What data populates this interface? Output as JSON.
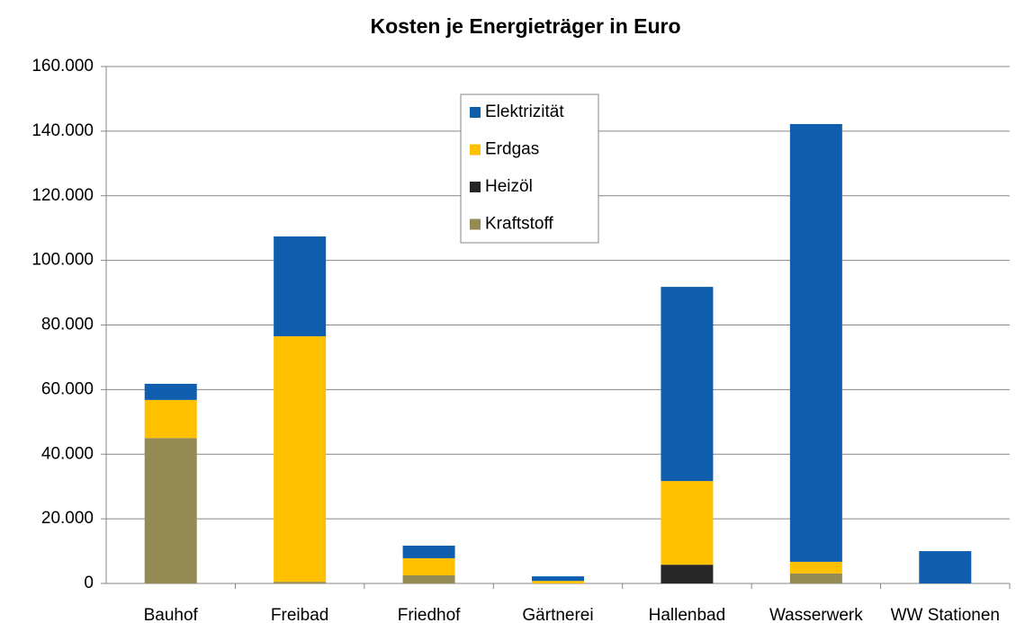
{
  "chart_data": {
    "type": "bar",
    "stacked": true,
    "title": "Kosten je Energieträger in Euro",
    "categories": [
      "Bauhof",
      "Freibad",
      "Friedhof",
      "Gärtnerei",
      "Hallenbad",
      "Wasserwerk",
      "WW Stationen"
    ],
    "series": [
      {
        "name": "Elektrizität",
        "color": "#0f5fae",
        "values": [
          5000,
          30900,
          3900,
          1400,
          60100,
          135500,
          10000
        ]
      },
      {
        "name": "Erdgas",
        "color": "#ffc000",
        "values": [
          11800,
          76000,
          5300,
          800,
          25900,
          3600,
          0
        ]
      },
      {
        "name": "Heizöl",
        "color": "#262626",
        "values": [
          0,
          0,
          0,
          0,
          5800,
          0,
          0
        ]
      },
      {
        "name": "Kraftstoff",
        "color": "#948a54",
        "values": [
          45000,
          500,
          2500,
          0,
          0,
          3100,
          0
        ]
      }
    ],
    "ylim": [
      0,
      160000
    ],
    "yticks": [
      0,
      {
        "value": 20000,
        "label": "20.000"
      },
      {
        "value": 40000,
        "label": "40.000"
      },
      {
        "value": 60000,
        "label": "60.000"
      },
      {
        "value": 80000,
        "label": "80.000"
      },
      {
        "value": 100000,
        "label": "100.000"
      },
      {
        "value": 120000,
        "label": "120.000"
      },
      {
        "value": 140000,
        "label": "140.000"
      },
      {
        "value": 160000,
        "label": "160.000"
      }
    ],
    "grid": true
  }
}
